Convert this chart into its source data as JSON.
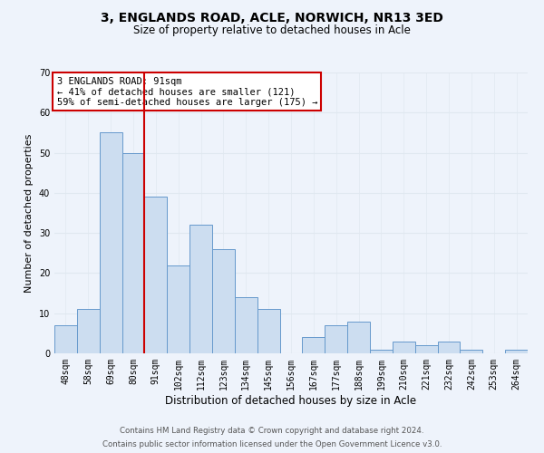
{
  "title": "3, ENGLANDS ROAD, ACLE, NORWICH, NR13 3ED",
  "subtitle": "Size of property relative to detached houses in Acle",
  "xlabel": "Distribution of detached houses by size in Acle",
  "ylabel": "Number of detached properties",
  "bin_labels": [
    "48sqm",
    "58sqm",
    "69sqm",
    "80sqm",
    "91sqm",
    "102sqm",
    "112sqm",
    "123sqm",
    "134sqm",
    "145sqm",
    "156sqm",
    "167sqm",
    "177sqm",
    "188sqm",
    "199sqm",
    "210sqm",
    "221sqm",
    "232sqm",
    "242sqm",
    "253sqm",
    "264sqm"
  ],
  "bar_heights": [
    7,
    11,
    55,
    50,
    39,
    22,
    32,
    26,
    14,
    11,
    0,
    4,
    7,
    8,
    1,
    3,
    2,
    3,
    1,
    0,
    1
  ],
  "bar_color": "#ccddf0",
  "bar_edge_color": "#6699cc",
  "vline_color": "#cc0000",
  "annotation_text": "3 ENGLANDS ROAD: 91sqm\n← 41% of detached houses are smaller (121)\n59% of semi-detached houses are larger (175) →",
  "annotation_box_color": "#ffffff",
  "annotation_box_edge": "#cc0000",
  "ylim": [
    0,
    70
  ],
  "yticks": [
    0,
    10,
    20,
    30,
    40,
    50,
    60,
    70
  ],
  "grid_color": "#e0e8f0",
  "footer_line1": "Contains HM Land Registry data © Crown copyright and database right 2024.",
  "footer_line2": "Contains public sector information licensed under the Open Government Licence v3.0.",
  "background_color": "#eef3fb"
}
